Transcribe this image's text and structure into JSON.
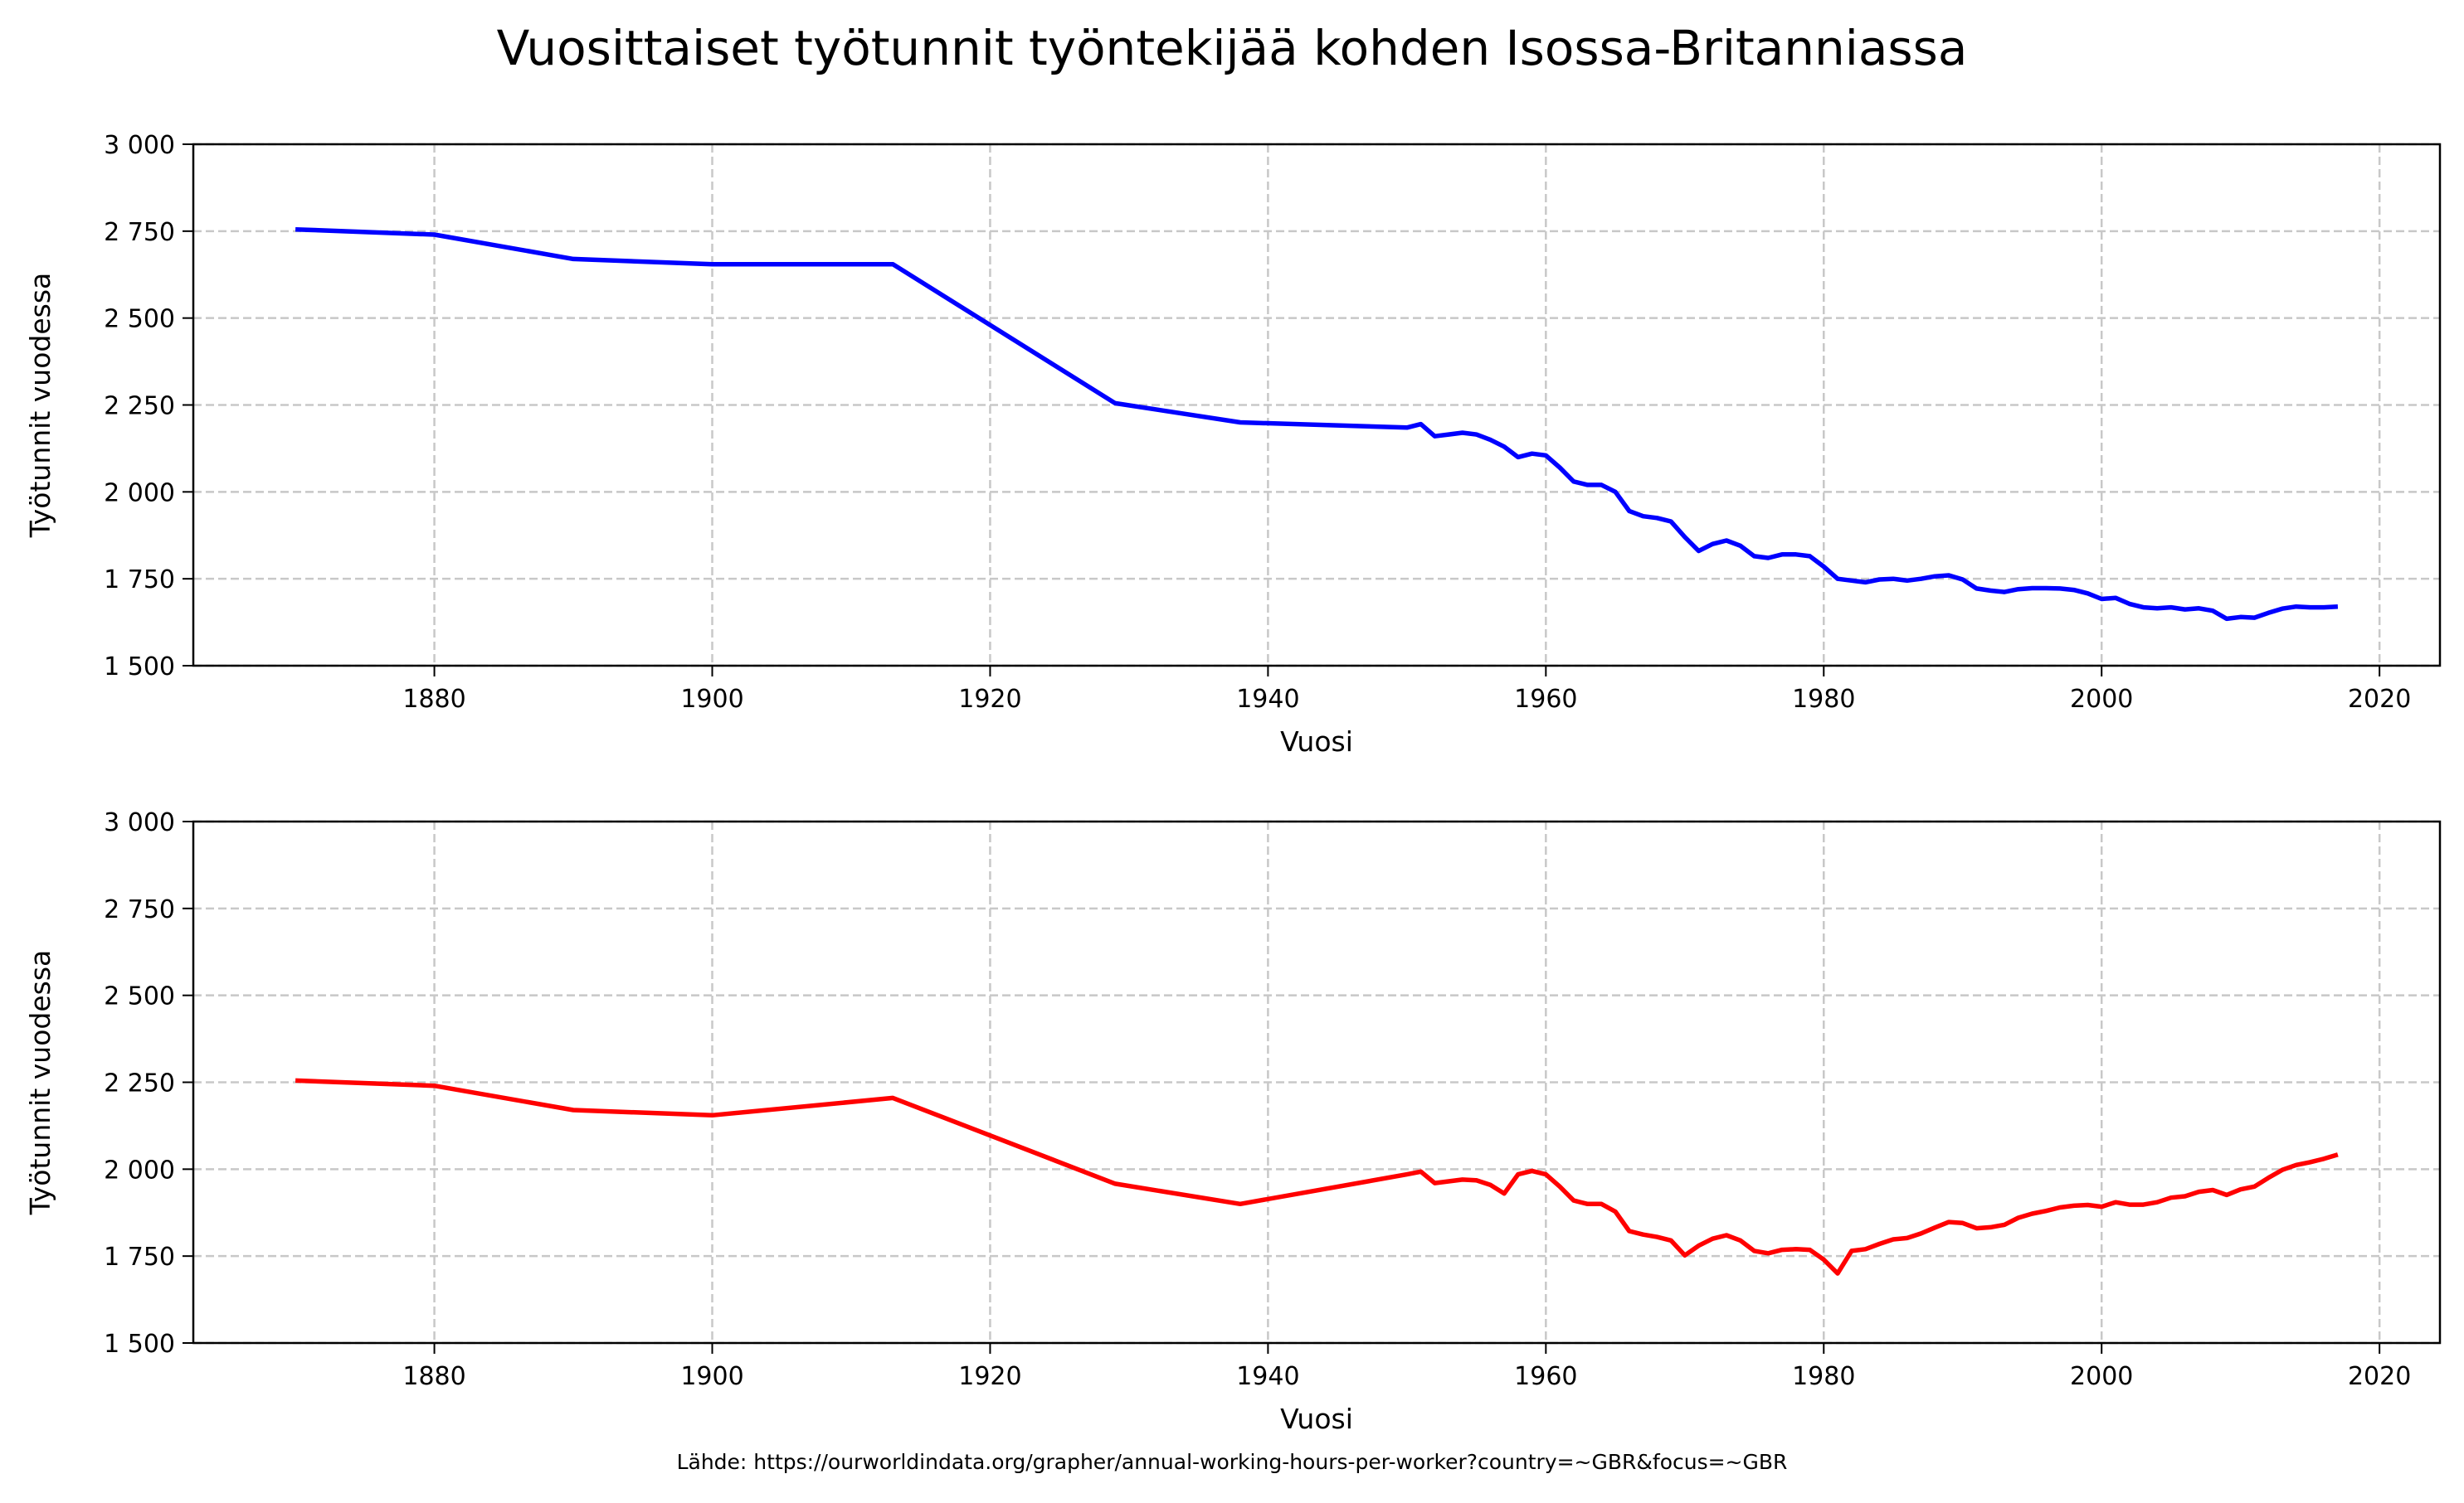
{
  "title": "Vuosittaiset työtunnit työntekijää kohden Isossa-Britanniassa",
  "source": "Lähde: https://ourworldindata.org/grapher/annual-working-hours-per-worker?country=~GBR&focus=~GBR",
  "chart_data": [
    {
      "type": "line",
      "xlabel": "Vuosi",
      "ylabel": "Työtunnit vuodessa",
      "xlim": [
        1862.65,
        2024.35
      ],
      "ylim": [
        1500,
        3000
      ],
      "grid": true,
      "xticks": [
        1880,
        1900,
        1920,
        1940,
        1960,
        1980,
        2000,
        2020
      ],
      "xtick_labels": [
        "1880",
        "1900",
        "1920",
        "1940",
        "1960",
        "1980",
        "2000",
        "2020"
      ],
      "yticks": [
        1500,
        1750,
        2000,
        2250,
        2500,
        2750,
        3000
      ],
      "ytick_labels": [
        "1 500",
        "1 750",
        "2 000",
        "2 250",
        "2 500",
        "2 750",
        "3 000"
      ],
      "color": "#0000ff",
      "x": [
        1870,
        1880,
        1890,
        1900,
        1913,
        1929,
        1938,
        1950,
        1951,
        1952,
        1953,
        1954,
        1955,
        1956,
        1957,
        1958,
        1959,
        1960,
        1961,
        1962,
        1963,
        1964,
        1965,
        1966,
        1967,
        1968,
        1969,
        1970,
        1971,
        1972,
        1973,
        1974,
        1975,
        1976,
        1977,
        1978,
        1979,
        1980,
        1981,
        1982,
        1983,
        1984,
        1985,
        1986,
        1987,
        1988,
        1989,
        1990,
        1991,
        1992,
        1993,
        1994,
        1995,
        1996,
        1997,
        1998,
        1999,
        2000,
        2001,
        2002,
        2003,
        2004,
        2005,
        2006,
        2007,
        2008,
        2009,
        2010,
        2011,
        2012,
        2013,
        2014,
        2015,
        2016,
        2017
      ],
      "y": [
        2755,
        2740,
        2670,
        2655,
        2655,
        2255,
        2200,
        2185,
        2195,
        2160,
        2165,
        2170,
        2165,
        2150,
        2130,
        2100,
        2110,
        2105,
        2070,
        2030,
        2020,
        2020,
        2000,
        1945,
        1930,
        1925,
        1915,
        1870,
        1830,
        1850,
        1860,
        1845,
        1815,
        1810,
        1820,
        1820,
        1815,
        1785,
        1750,
        1745,
        1740,
        1748,
        1750,
        1745,
        1750,
        1757,
        1760,
        1748,
        1722,
        1716,
        1712,
        1720,
        1723,
        1723,
        1722,
        1718,
        1708,
        1692,
        1695,
        1678,
        1668,
        1665,
        1668,
        1662,
        1665,
        1658,
        1635,
        1640,
        1638,
        1652,
        1664,
        1670,
        1668,
        1668,
        1670
      ]
    },
    {
      "type": "line",
      "xlabel": "Vuosi",
      "ylabel": "Työtunnit vuodessa",
      "xlim": [
        1862.65,
        2024.35
      ],
      "ylim": [
        1500,
        3000
      ],
      "grid": true,
      "xticks": [
        1880,
        1900,
        1920,
        1940,
        1960,
        1980,
        2000,
        2020
      ],
      "xtick_labels": [
        "1880",
        "1900",
        "1920",
        "1940",
        "1960",
        "1980",
        "2000",
        "2020"
      ],
      "yticks": [
        1500,
        1750,
        2000,
        2250,
        2500,
        2750,
        3000
      ],
      "ytick_labels": [
        "1 500",
        "1 750",
        "2 000",
        "2 250",
        "2 500",
        "2 750",
        "3 000"
      ],
      "color": "#ff0000",
      "x": [
        1870,
        1880,
        1890,
        1900,
        1913,
        1929,
        1938,
        1950,
        1951,
        1952,
        1953,
        1954,
        1955,
        1956,
        1957,
        1958,
        1959,
        1960,
        1961,
        1962,
        1963,
        1964,
        1965,
        1966,
        1967,
        1968,
        1969,
        1970,
        1971,
        1972,
        1973,
        1974,
        1975,
        1976,
        1977,
        1978,
        1979,
        1980,
        1981,
        1982,
        1983,
        1984,
        1985,
        1986,
        1987,
        1988,
        1989,
        1990,
        1991,
        1992,
        1993,
        1994,
        1995,
        1996,
        1997,
        1998,
        1999,
        2000,
        2001,
        2002,
        2003,
        2004,
        2005,
        2006,
        2007,
        2008,
        2009,
        2010,
        2011,
        2012,
        2013,
        2014,
        2015,
        2016,
        2017
      ],
      "y": [
        2255,
        2240,
        2170,
        2155,
        2205,
        1958,
        1900,
        1985,
        1993,
        1960,
        1965,
        1970,
        1968,
        1955,
        1930,
        1985,
        1995,
        1985,
        1950,
        1910,
        1900,
        1900,
        1878,
        1822,
        1812,
        1805,
        1795,
        1752,
        1780,
        1800,
        1810,
        1795,
        1765,
        1758,
        1768,
        1770,
        1768,
        1740,
        1700,
        1765,
        1770,
        1785,
        1798,
        1802,
        1815,
        1832,
        1848,
        1845,
        1830,
        1833,
        1840,
        1860,
        1872,
        1880,
        1890,
        1895,
        1897,
        1892,
        1905,
        1898,
        1898,
        1905,
        1918,
        1922,
        1935,
        1940,
        1926,
        1942,
        1950,
        1975,
        1998,
        2012,
        2020,
        2030,
        2042
      ]
    }
  ]
}
